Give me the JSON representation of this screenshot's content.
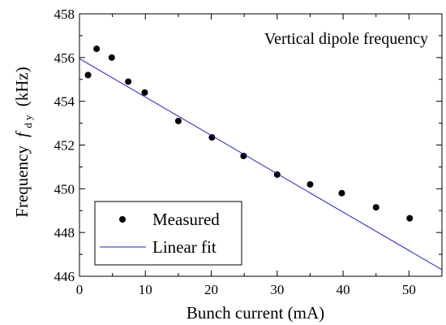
{
  "chart_data": {
    "type": "scatter",
    "title": "",
    "annotation": "Vertical dipole frequency",
    "xlabel": "Bunch current (mA)",
    "ylabel_prefix": "Frequency",
    "ylabel_symbol": "f",
    "ylabel_subscript": "d y",
    "ylabel_unit": "(kHz)",
    "xlim": [
      0,
      55
    ],
    "ylim": [
      446,
      458
    ],
    "x_ticks": [
      0,
      10,
      20,
      30,
      40,
      50
    ],
    "y_ticks": [
      446,
      448,
      450,
      452,
      454,
      456,
      458
    ],
    "grid": false,
    "legend_position": "bottom-left",
    "series": [
      {
        "name": "Measured",
        "kind": "points",
        "color": "#000000",
        "x": [
          1.3,
          2.6,
          4.9,
          7.4,
          9.9,
          15.0,
          20.1,
          24.9,
          30.0,
          35.0,
          39.8,
          45.0,
          50.1
        ],
        "y": [
          455.2,
          456.4,
          456.0,
          454.9,
          454.4,
          453.1,
          452.35,
          451.5,
          450.65,
          450.2,
          449.8,
          449.15,
          448.65
        ]
      },
      {
        "name": "Linear fit",
        "kind": "line",
        "color": "#1f1fcc",
        "x": [
          0,
          55
        ],
        "y": [
          455.95,
          446.3
        ]
      }
    ]
  }
}
